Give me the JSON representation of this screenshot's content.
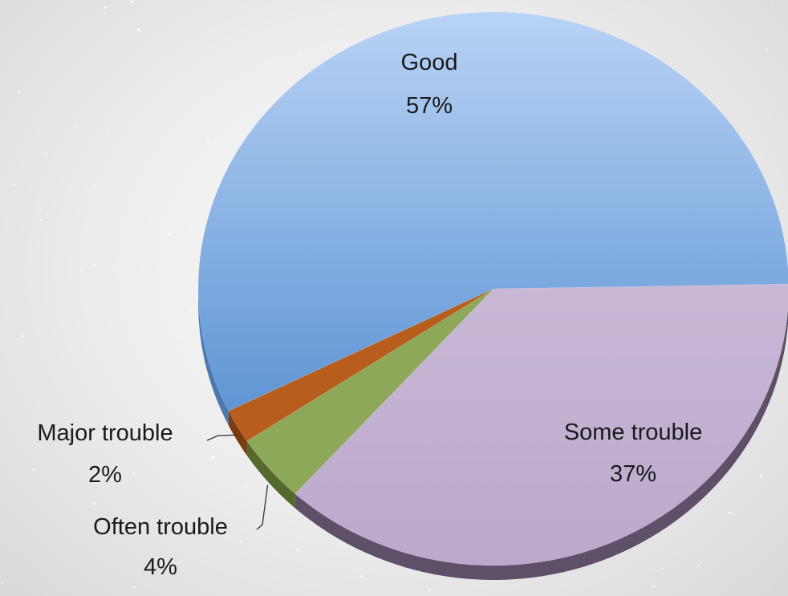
{
  "chart_data": {
    "type": "pie",
    "title": "",
    "slices": [
      {
        "label": "Good",
        "value": 57,
        "pct_label": "57%",
        "color": "#8db4e2"
      },
      {
        "label": "Some trouble",
        "value": 37,
        "pct_label": "37%",
        "color": "#c1b0cd"
      },
      {
        "label": "Often trouble",
        "value": 4,
        "pct_label": "4%",
        "color": "#8ea85a"
      },
      {
        "label": "Major trouble",
        "value": 2,
        "pct_label": "2%",
        "color": "#b85e1c"
      }
    ],
    "legend": "none",
    "data_labels": "category and percentage",
    "style": "3D"
  }
}
